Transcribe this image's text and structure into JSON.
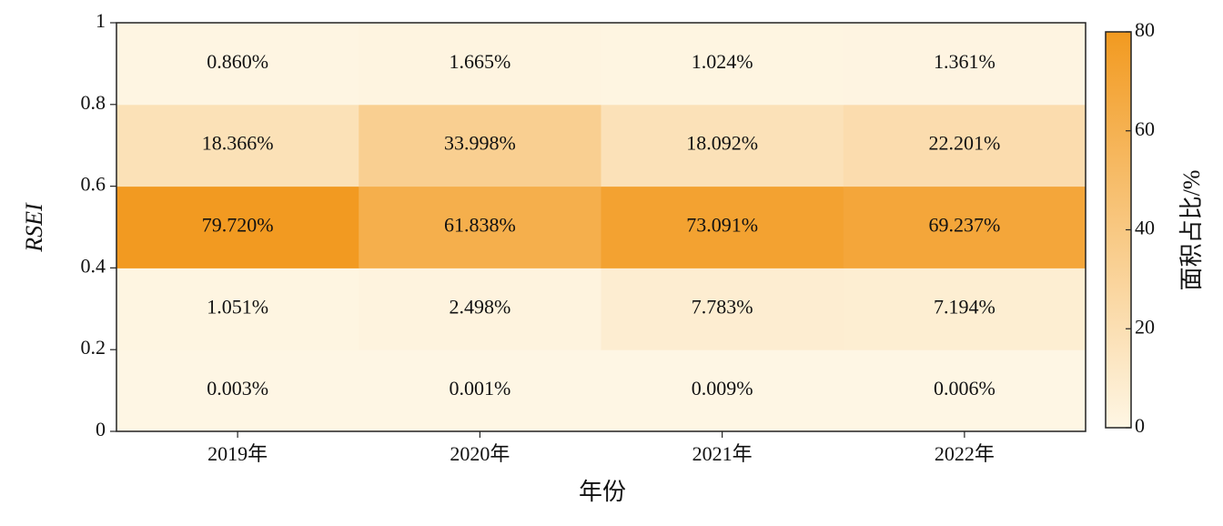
{
  "chart_data": {
    "type": "heatmap",
    "xlabel": "年份",
    "ylabel": "RSEI",
    "categories": [
      "2019年",
      "2020年",
      "2021年",
      "2022年"
    ],
    "ybins": [
      0,
      0.2,
      0.4,
      0.6,
      0.8,
      1
    ],
    "ylim": [
      0,
      1
    ],
    "yticks": [
      0,
      0.2,
      0.4,
      0.6,
      0.8,
      1
    ],
    "values": [
      [
        0.003,
        0.001,
        0.009,
        0.006
      ],
      [
        1.051,
        2.498,
        7.783,
        7.194
      ],
      [
        79.72,
        61.838,
        73.091,
        69.237
      ],
      [
        18.366,
        33.998,
        18.092,
        22.201
      ],
      [
        0.86,
        1.665,
        1.024,
        1.361
      ]
    ],
    "value_labels": [
      [
        "0.003%",
        "0.001%",
        "0.009%",
        "0.006%"
      ],
      [
        "1.051%",
        "2.498%",
        "7.783%",
        "7.194%"
      ],
      [
        "79.720%",
        "61.838%",
        "73.091%",
        "69.237%"
      ],
      [
        "18.366%",
        "33.998%",
        "18.092%",
        "22.201%"
      ],
      [
        "0.860%",
        "1.665%",
        "1.024%",
        "1.361%"
      ]
    ],
    "colorbar": {
      "label": "面积占比/%",
      "lim": [
        0,
        80
      ],
      "ticks": [
        0,
        20,
        40,
        60,
        80
      ],
      "colors": [
        "#fef6e4",
        "#f29a20"
      ]
    }
  }
}
